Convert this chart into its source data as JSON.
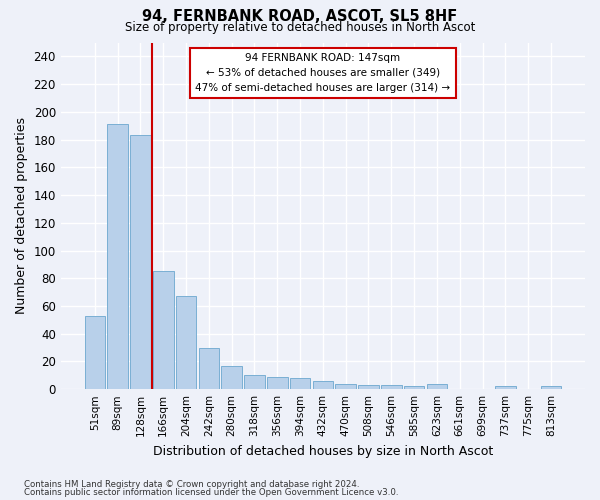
{
  "title": "94, FERNBANK ROAD, ASCOT, SL5 8HF",
  "subtitle": "Size of property relative to detached houses in North Ascot",
  "xlabel": "Distribution of detached houses by size in North Ascot",
  "ylabel": "Number of detached properties",
  "bar_color": "#b8d0ea",
  "bar_edge_color": "#7aafd4",
  "background_color": "#eef1f9",
  "grid_color": "#ffffff",
  "categories": [
    "51sqm",
    "89sqm",
    "128sqm",
    "166sqm",
    "204sqm",
    "242sqm",
    "280sqm",
    "318sqm",
    "356sqm",
    "394sqm",
    "432sqm",
    "470sqm",
    "508sqm",
    "546sqm",
    "585sqm",
    "623sqm",
    "661sqm",
    "699sqm",
    "737sqm",
    "775sqm",
    "813sqm"
  ],
  "values": [
    53,
    191,
    183,
    85,
    67,
    30,
    17,
    10,
    9,
    8,
    6,
    4,
    3,
    3,
    2,
    4,
    0,
    0,
    2,
    0,
    2
  ],
  "ylim": [
    0,
    250
  ],
  "yticks": [
    0,
    20,
    40,
    60,
    80,
    100,
    120,
    140,
    160,
    180,
    200,
    220,
    240
  ],
  "property_line_x": 2.5,
  "annotation_text_line1": "94 FERNBANK ROAD: 147sqm",
  "annotation_text_line2": "← 53% of detached houses are smaller (349)",
  "annotation_text_line3": "47% of semi-detached houses are larger (314) →",
  "annotation_box_color": "#ffffff",
  "annotation_border_color": "#cc0000",
  "line_color": "#cc0000",
  "footer_line1": "Contains HM Land Registry data © Crown copyright and database right 2024.",
  "footer_line2": "Contains public sector information licensed under the Open Government Licence v3.0."
}
